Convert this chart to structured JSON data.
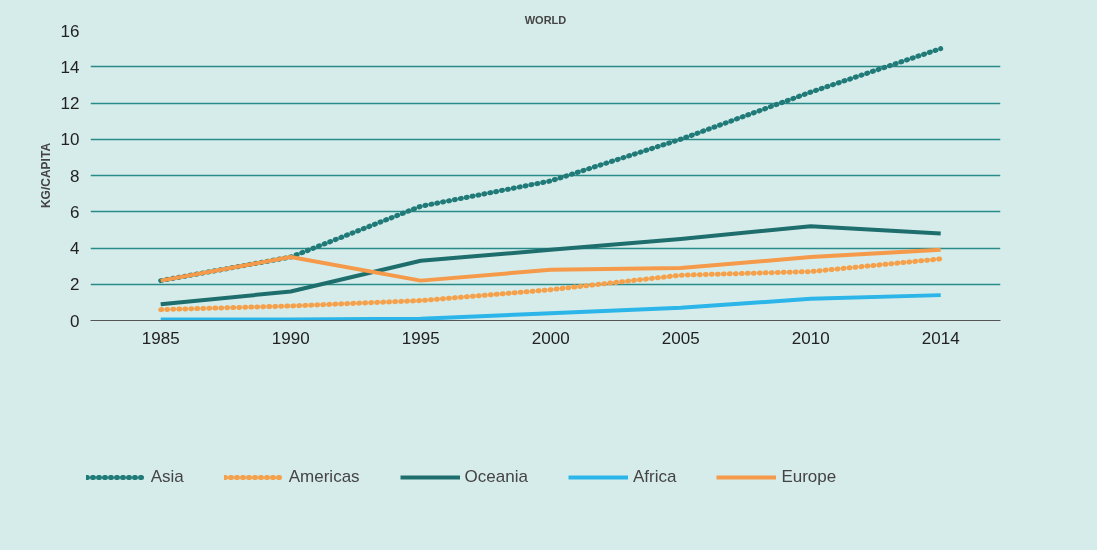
{
  "chart_data": {
    "type": "line",
    "title": "WORLD",
    "ylabel": "KG/CAPITA",
    "categories": [
      "1985",
      "1990",
      "1995",
      "2000",
      "2005",
      "2010",
      "2014"
    ],
    "series": [
      {
        "name": "Asia",
        "color": "#1f7a78",
        "line_style": "dotted",
        "values": [
          2.2,
          3.5,
          6.3,
          7.7,
          10.0,
          12.6,
          15.0
        ]
      },
      {
        "name": "Americas",
        "color": "#f5a04a",
        "line_style": "dotted",
        "values": [
          0.6,
          0.8,
          1.1,
          1.7,
          2.5,
          2.7,
          3.4
        ]
      },
      {
        "name": "Oceania",
        "color": "#1e6e6e",
        "line_style": "solid",
        "values": [
          0.9,
          1.6,
          3.3,
          3.9,
          4.5,
          5.2,
          4.8
        ]
      },
      {
        "name": "Africa",
        "color": "#2bb5e8",
        "line_style": "solid",
        "values": [
          0.05,
          0.05,
          0.1,
          0.4,
          0.7,
          1.2,
          1.4
        ]
      },
      {
        "name": "Europe",
        "color": "#f59a4a",
        "line_style": "solid",
        "values": [
          2.2,
          3.5,
          2.2,
          2.8,
          2.9,
          3.5,
          3.9
        ]
      }
    ],
    "ylim": [
      0,
      16
    ],
    "yticks": [
      0,
      2,
      4,
      6,
      8,
      10,
      12,
      14,
      16
    ],
    "grid": "y",
    "legend": "bottom"
  }
}
